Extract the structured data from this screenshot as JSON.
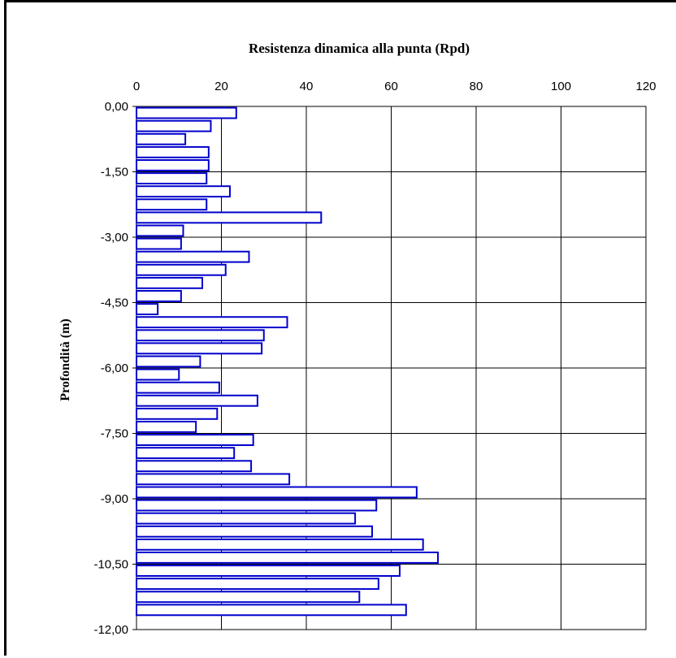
{
  "chart_data": {
    "type": "bar",
    "orientation": "horizontal",
    "title": "Resistenza dinamica alla punta (Rpd)",
    "ylabel": "Profondità (m)",
    "xlabel": "",
    "xlim": [
      0,
      120
    ],
    "ylim": [
      -12,
      0
    ],
    "x_ticks": [
      "0",
      "20",
      "40",
      "60",
      "80",
      "100",
      "120"
    ],
    "x_tick_values": [
      0,
      20,
      40,
      60,
      80,
      100,
      120
    ],
    "y_ticks": [
      "0,00",
      "-1,50",
      "-3,00",
      "-4,50",
      "-6,00",
      "-7,50",
      "-9,00",
      "-10,50",
      "-12,00"
    ],
    "y_tick_values": [
      0,
      -1.5,
      -3,
      -4.5,
      -6,
      -7.5,
      -9,
      -10.5,
      -12
    ],
    "x_axis_position": "top",
    "grid": true,
    "legend": "none",
    "bar_color": "#0000cc",
    "depth_step": 0.3,
    "series": [
      {
        "values": [
          23.5,
          17.5,
          11.5,
          17,
          17,
          16.5,
          22,
          16.5,
          43.5,
          11,
          10.5,
          26.5,
          21,
          15.5,
          10.5,
          5,
          35.5,
          30,
          29.5,
          15,
          10,
          19.5,
          28.5,
          19,
          14,
          27.5,
          23,
          27,
          36,
          66,
          56.5,
          51.5,
          55.5,
          67.5,
          71,
          62,
          57,
          52.5,
          63.5
        ]
      }
    ]
  }
}
